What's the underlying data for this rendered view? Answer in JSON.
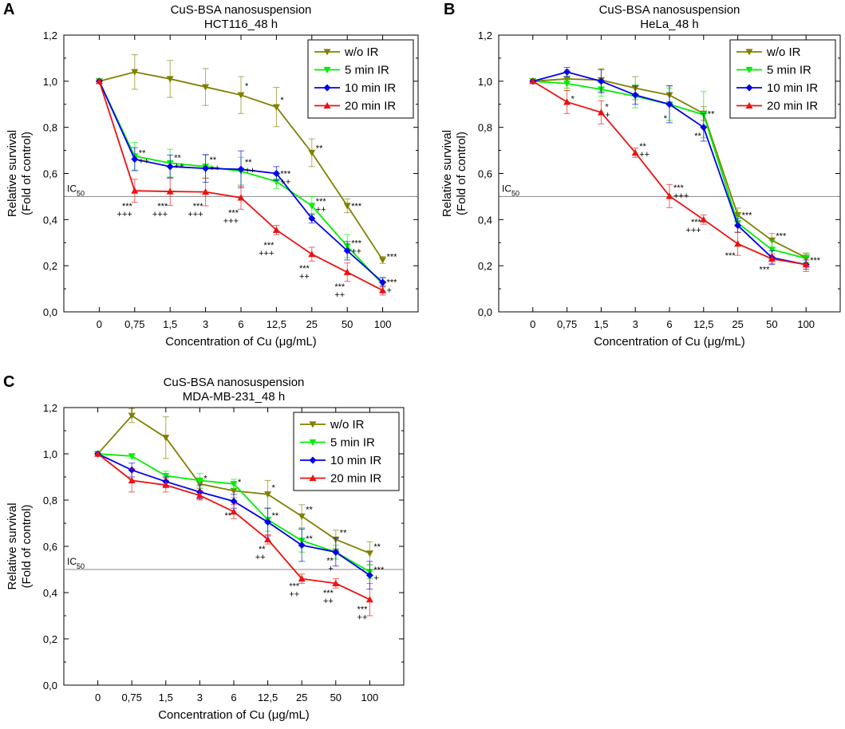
{
  "chart_data": [
    {
      "panel_label": "A",
      "type": "line",
      "title": "CuS-BSA nanosuspension",
      "subtitle": "HCT116_48 h",
      "xlabel": "Concentration of Cu (μg/mL)",
      "ylabel_line1": "Relative survival",
      "ylabel_line2": "(Fold of control)",
      "categories": [
        "0",
        "0,75",
        "1,5",
        "3",
        "6",
        "12,5",
        "25",
        "50",
        "100"
      ],
      "ylim": [
        0,
        1.2
      ],
      "yticks": [
        0,
        0.2,
        0.4,
        0.6,
        0.8,
        1.0,
        1.2
      ],
      "ytick_labels": [
        "0,0",
        "0,2",
        "0,4",
        "0,6",
        "0,8",
        "1,0",
        "1,2"
      ],
      "reference_line": {
        "y": 0.5,
        "label": "IC",
        "label_sub": "50"
      },
      "legend_position": "top-right",
      "series": [
        {
          "name": "w/o IR",
          "color": "#808000",
          "marker": "tri-down",
          "values": [
            1.0,
            1.04,
            1.01,
            0.975,
            0.94,
            0.888,
            0.69,
            0.46,
            0.225
          ],
          "errors": [
            0,
            0.075,
            0.08,
            0.08,
            0.08,
            0.085,
            0.06,
            0.03,
            0.015
          ]
        },
        {
          "name": "5 min IR",
          "color": "#00ee00",
          "marker": "tri-down",
          "values": [
            1.0,
            0.675,
            0.645,
            0.63,
            0.61,
            0.565,
            0.46,
            0.285,
            0.12
          ],
          "errors": [
            0,
            0.06,
            0.06,
            0.05,
            0.06,
            0.03,
            0.04,
            0.05,
            0.03
          ]
        },
        {
          "name": "10 min IR",
          "color": "#0000ee",
          "marker": "diamond",
          "values": [
            1.0,
            0.662,
            0.63,
            0.622,
            0.618,
            0.6,
            0.405,
            0.265,
            0.128
          ],
          "errors": [
            0,
            0.05,
            0.05,
            0.06,
            0.08,
            0.03,
            0.02,
            0.04,
            0.02
          ]
        },
        {
          "name": "20 min IR",
          "color": "#ee1111",
          "marker": "tri-up",
          "values": [
            1.0,
            0.525,
            0.522,
            0.52,
            0.495,
            0.355,
            0.25,
            0.172,
            0.093
          ],
          "errors": [
            0,
            0.05,
            0.06,
            0.06,
            0.05,
            0.02,
            0.03,
            0.04,
            0.02
          ]
        }
      ],
      "annotations": [
        {
          "cat": 1,
          "y": 0.69,
          "l1": "**",
          "l2": "++",
          "side": "right"
        },
        {
          "cat": 2,
          "y": 0.67,
          "l1": "**",
          "l2": "++",
          "side": "right"
        },
        {
          "cat": 3,
          "y": 0.66,
          "l1": "**",
          "l2": "++",
          "side": "right"
        },
        {
          "cat": 4,
          "y": 0.65,
          "l1": "**",
          "l2": "++",
          "side": "right"
        },
        {
          "cat": 4,
          "y": 0.98,
          "l1": "*",
          "l2": "",
          "side": "right"
        },
        {
          "cat": 5,
          "y": 0.92,
          "l1": "*",
          "l2": "",
          "side": "right"
        },
        {
          "cat": 5,
          "y": 0.6,
          "l1": "***",
          "l2": "++",
          "side": "right"
        },
        {
          "cat": 6,
          "y": 0.71,
          "l1": "**",
          "l2": "",
          "side": "right"
        },
        {
          "cat": 6,
          "y": 0.48,
          "l1": "***",
          "l2": "++",
          "side": "right"
        },
        {
          "cat": 7,
          "y": 0.46,
          "l1": "***",
          "l2": "",
          "side": "right"
        },
        {
          "cat": 7,
          "y": 0.3,
          "l1": "***",
          "l2": "++",
          "side": "right"
        },
        {
          "cat": 8,
          "y": 0.24,
          "l1": "***",
          "l2": "",
          "side": "right"
        },
        {
          "cat": 8,
          "y": 0.13,
          "l1": "***",
          "l2": "+",
          "side": "right"
        },
        {
          "cat": 1,
          "y": 0.46,
          "l1": "***",
          "l2": "+++",
          "side": "left"
        },
        {
          "cat": 2,
          "y": 0.46,
          "l1": "***",
          "l2": "+++",
          "side": "left"
        },
        {
          "cat": 3,
          "y": 0.46,
          "l1": "***",
          "l2": "+++",
          "side": "left"
        },
        {
          "cat": 4,
          "y": 0.43,
          "l1": "***",
          "l2": "+++",
          "side": "left"
        },
        {
          "cat": 5,
          "y": 0.29,
          "l1": "***",
          "l2": "+++",
          "side": "left"
        },
        {
          "cat": 6,
          "y": 0.19,
          "l1": "***",
          "l2": "++",
          "side": "left"
        },
        {
          "cat": 7,
          "y": 0.11,
          "l1": "***",
          "l2": "++",
          "side": "left"
        }
      ]
    },
    {
      "panel_label": "B",
      "type": "line",
      "title": "CuS-BSA nanosuspension",
      "subtitle": "HeLa_48 h",
      "xlabel": "Concentration of Cu (μg/mL)",
      "ylabel_line1": "Relative survival",
      "ylabel_line2": "(Fold of control)",
      "categories": [
        "0",
        "0,75",
        "1,5",
        "3",
        "6",
        "12,5",
        "25",
        "50",
        "100"
      ],
      "ylim": [
        0,
        1.2
      ],
      "yticks": [
        0,
        0.2,
        0.4,
        0.6,
        0.8,
        1.0,
        1.2
      ],
      "ytick_labels": [
        "0,0",
        "0,2",
        "0,4",
        "0,6",
        "0,8",
        "1,0",
        "1,2"
      ],
      "reference_line": {
        "y": 0.5,
        "label": "IC",
        "label_sub": "50"
      },
      "legend_position": "top-right",
      "series": [
        {
          "name": "w/o IR",
          "color": "#808000",
          "marker": "tri-down",
          "values": [
            1.0,
            1.01,
            1.005,
            0.97,
            0.94,
            0.86,
            0.42,
            0.31,
            0.235
          ],
          "errors": [
            0,
            0.04,
            0.05,
            0.05,
            0.04,
            0.03,
            0.03,
            0.03,
            0.02
          ]
        },
        {
          "name": "5 min IR",
          "color": "#00ee00",
          "marker": "tri-down",
          "values": [
            1.0,
            0.99,
            0.965,
            0.935,
            0.9,
            0.855,
            0.385,
            0.27,
            0.232
          ],
          "errors": [
            0,
            0.03,
            0.03,
            0.05,
            0.07,
            0.1,
            0.04,
            0.04,
            0.02
          ]
        },
        {
          "name": "10 min IR",
          "color": "#0000ee",
          "marker": "diamond",
          "values": [
            1.0,
            1.04,
            1.0,
            0.94,
            0.9,
            0.8,
            0.375,
            0.235,
            0.205
          ],
          "errors": [
            0,
            0.02,
            0.05,
            0.04,
            0.08,
            0.06,
            0.03,
            0.03,
            0.02
          ]
        },
        {
          "name": "20 min IR",
          "color": "#ee1111",
          "marker": "tri-up",
          "values": [
            1.0,
            0.91,
            0.865,
            0.69,
            0.502,
            0.4,
            0.295,
            0.23,
            0.205
          ],
          "errors": [
            0,
            0.05,
            0.05,
            0.02,
            0.05,
            0.02,
            0.05,
            0.02,
            0.03
          ]
        }
      ],
      "annotations": [
        {
          "cat": 1,
          "y": 0.925,
          "l1": "*",
          "l2": "",
          "side": "right"
        },
        {
          "cat": 2,
          "y": 0.89,
          "l1": "*",
          "l2": "+",
          "side": "right"
        },
        {
          "cat": 3,
          "y": 0.72,
          "l1": "**",
          "l2": "++",
          "side": "right"
        },
        {
          "cat": 4,
          "y": 0.54,
          "l1": "***",
          "l2": "+++",
          "side": "right"
        },
        {
          "cat": 5,
          "y": 0.86,
          "l1": "**",
          "l2": "",
          "side": "right"
        },
        {
          "cat": 5,
          "y": 0.39,
          "l1": "***",
          "l2": "+++",
          "side": "left"
        },
        {
          "cat": 6,
          "y": 0.42,
          "l1": "***",
          "l2": "",
          "side": "right"
        },
        {
          "cat": 7,
          "y": 0.33,
          "l1": "***",
          "l2": "",
          "side": "right"
        },
        {
          "cat": 8,
          "y": 0.225,
          "l1": "***",
          "l2": "",
          "side": "right"
        },
        {
          "cat": 4,
          "y": 0.84,
          "l1": "*",
          "l2": "",
          "side": "left"
        },
        {
          "cat": 5,
          "y": 0.765,
          "l1": "**",
          "l2": "",
          "side": "left"
        },
        {
          "cat": 6,
          "y": 0.245,
          "l1": "***",
          "l2": "",
          "side": "left"
        },
        {
          "cat": 7,
          "y": 0.185,
          "l1": "***",
          "l2": "",
          "side": "left"
        }
      ]
    },
    {
      "panel_label": "C",
      "type": "line",
      "title": "CuS-BSA nanosuspension",
      "subtitle": "MDA-MB-231_48 h",
      "xlabel": "Concentration of Cu (μg/mL)",
      "ylabel_line1": "Relative survival",
      "ylabel_line2": "(Fold of control)",
      "categories": [
        "0",
        "0,75",
        "1,5",
        "3",
        "6",
        "12,5",
        "25",
        "50",
        "100"
      ],
      "ylim": [
        0,
        1.2
      ],
      "yticks": [
        0,
        0.2,
        0.4,
        0.6,
        0.8,
        1.0,
        1.2
      ],
      "ytick_labels": [
        "0,0",
        "0,2",
        "0,4",
        "0,6",
        "0,8",
        "1,0",
        "1,2"
      ],
      "reference_line": {
        "y": 0.5,
        "label": "IC",
        "label_sub": "50"
      },
      "legend_position": "top-right",
      "series": [
        {
          "name": "w/o IR",
          "color": "#808000",
          "marker": "tri-down",
          "values": [
            1.0,
            1.165,
            1.07,
            0.87,
            0.84,
            0.825,
            0.73,
            0.63,
            0.57
          ],
          "errors": [
            0,
            0.03,
            0.09,
            0.02,
            0.03,
            0.06,
            0.05,
            0.04,
            0.05
          ]
        },
        {
          "name": "5 min IR",
          "color": "#00ee00",
          "marker": "tri-down",
          "values": [
            1.0,
            0.99,
            0.905,
            0.885,
            0.87,
            0.715,
            0.625,
            0.575,
            0.49
          ],
          "errors": [
            0,
            0.01,
            0.02,
            0.03,
            0.02,
            0.05,
            0.05,
            0.03,
            0.03
          ]
        },
        {
          "name": "10 min IR",
          "color": "#0000ee",
          "marker": "diamond",
          "values": [
            1.0,
            0.93,
            0.88,
            0.835,
            0.795,
            0.705,
            0.605,
            0.575,
            0.475
          ],
          "errors": [
            0,
            0.03,
            0.02,
            0.03,
            0.03,
            0.06,
            0.07,
            0.06,
            0.06
          ]
        },
        {
          "name": "20 min IR",
          "color": "#ee1111",
          "marker": "tri-up",
          "values": [
            1.0,
            0.885,
            0.865,
            0.82,
            0.75,
            0.63,
            0.46,
            0.44,
            0.37
          ],
          "errors": [
            0,
            0.05,
            0.03,
            0.02,
            0.03,
            0.02,
            0.02,
            0.02,
            0.07
          ]
        }
      ],
      "annotations": [
        {
          "cat": 3,
          "y": 0.895,
          "l1": "*",
          "l2": "",
          "side": "right"
        },
        {
          "cat": 4,
          "y": 0.88,
          "l1": "*",
          "l2": "",
          "side": "right"
        },
        {
          "cat": 5,
          "y": 0.855,
          "l1": "*",
          "l2": "",
          "side": "right"
        },
        {
          "cat": 5,
          "y": 0.735,
          "l1": "**",
          "l2": "",
          "side": "right"
        },
        {
          "cat": 6,
          "y": 0.76,
          "l1": "**",
          "l2": "",
          "side": "right"
        },
        {
          "cat": 6,
          "y": 0.635,
          "l1": "**",
          "l2": "",
          "side": "right"
        },
        {
          "cat": 7,
          "y": 0.66,
          "l1": "**",
          "l2": "",
          "side": "right"
        },
        {
          "cat": 8,
          "y": 0.6,
          "l1": "**",
          "l2": "",
          "side": "right"
        },
        {
          "cat": 8,
          "y": 0.5,
          "l1": "***",
          "l2": "+",
          "side": "right"
        },
        {
          "cat": 4,
          "y": 0.735,
          "l1": "**",
          "l2": "",
          "side": "left"
        },
        {
          "cat": 5,
          "y": 0.59,
          "l1": "**",
          "l2": "++",
          "side": "left"
        },
        {
          "cat": 6,
          "y": 0.43,
          "l1": "***",
          "l2": "++",
          "side": "left"
        },
        {
          "cat": 7,
          "y": 0.54,
          "l1": "**",
          "l2": "+",
          "side": "left"
        },
        {
          "cat": 7,
          "y": 0.4,
          "l1": "***",
          "l2": "++",
          "side": "left"
        },
        {
          "cat": 8,
          "y": 0.33,
          "l1": "***",
          "l2": "++",
          "side": "left"
        }
      ]
    }
  ]
}
